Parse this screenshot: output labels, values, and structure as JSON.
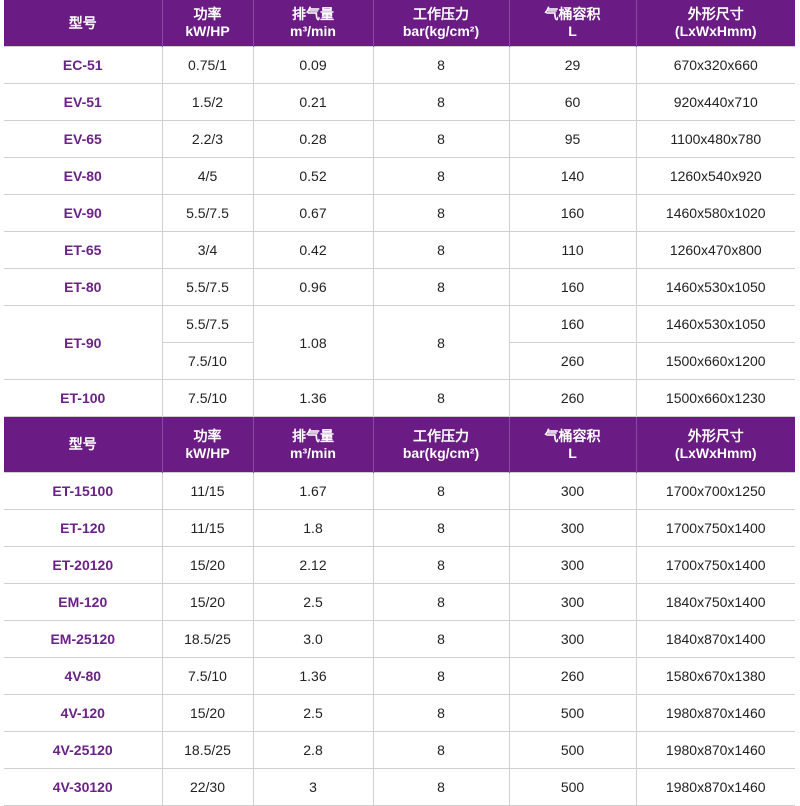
{
  "header": [
    "型号",
    "功率\nkW/HP",
    "排气量\nm³/min",
    "工作压力\nbar(kg/cm²)",
    "气桶容积\nL",
    "外形尺寸\n(LxWxHmm)"
  ],
  "colors": {
    "header_bg": "#6a1b84",
    "model_text": "#6b2287"
  },
  "section1": [
    {
      "model": "EC-51",
      "power": "0.75/1",
      "discharge": "0.09",
      "pressure": "8",
      "volume": "29",
      "dims": "670x320x660"
    },
    {
      "model": "EV-51",
      "power": "1.5/2",
      "discharge": "0.21",
      "pressure": "8",
      "volume": "60",
      "dims": "920x440x710"
    },
    {
      "model": "EV-65",
      "power": "2.2/3",
      "discharge": "0.28",
      "pressure": "8",
      "volume": "95",
      "dims": "1100x480x780"
    },
    {
      "model": "EV-80",
      "power": "4/5",
      "discharge": "0.52",
      "pressure": "8",
      "volume": "140",
      "dims": "1260x540x920"
    },
    {
      "model": "EV-90",
      "power": "5.5/7.5",
      "discharge": "0.67",
      "pressure": "8",
      "volume": "160",
      "dims": "1460x580x1020"
    },
    {
      "model": "ET-65",
      "power": "3/4",
      "discharge": "0.42",
      "pressure": "8",
      "volume": "110",
      "dims": "1260x470x800"
    },
    {
      "model": "ET-80",
      "power": "5.5/7.5",
      "discharge": "0.96",
      "pressure": "8",
      "volume": "160",
      "dims": "1460x530x1050"
    },
    {
      "model": "ET-90",
      "discharge": "1.08",
      "pressure": "8",
      "variants": [
        {
          "power": "5.5/7.5",
          "volume": "160",
          "dims": "1460x530x1050"
        },
        {
          "power": "7.5/10",
          "volume": "260",
          "dims": "1500x660x1200"
        }
      ]
    },
    {
      "model": "ET-100",
      "power": "7.5/10",
      "discharge": "1.36",
      "pressure": "8",
      "volume": "260",
      "dims": "1500x660x1230"
    }
  ],
  "section2": [
    {
      "model": "ET-15100",
      "power": "11/15",
      "discharge": "1.67",
      "pressure": "8",
      "volume": "300",
      "dims": "1700x700x1250"
    },
    {
      "model": "ET-120",
      "power": "11/15",
      "discharge": "1.8",
      "pressure": "8",
      "volume": "300",
      "dims": "1700x750x1400"
    },
    {
      "model": "ET-20120",
      "power": "15/20",
      "discharge": "2.12",
      "pressure": "8",
      "volume": "300",
      "dims": "1700x750x1400"
    },
    {
      "model": "EM-120",
      "power": "15/20",
      "discharge": "2.5",
      "pressure": "8",
      "volume": "300",
      "dims": "1840x750x1400"
    },
    {
      "model": "EM-25120",
      "power": "18.5/25",
      "discharge": "3.0",
      "pressure": "8",
      "volume": "300",
      "dims": "1840x870x1400"
    },
    {
      "model": "4V-80",
      "power": "7.5/10",
      "discharge": "1.36",
      "pressure": "8",
      "volume": "260",
      "dims": "1580x670x1380"
    },
    {
      "model": "4V-120",
      "power": "15/20",
      "discharge": "2.5",
      "pressure": "8",
      "volume": "500",
      "dims": "1980x870x1460"
    },
    {
      "model": "4V-25120",
      "power": "18.5/25",
      "discharge": "2.8",
      "pressure": "8",
      "volume": "500",
      "dims": "1980x870x1460"
    },
    {
      "model": "4V-30120",
      "power": "22/30",
      "discharge": "3",
      "pressure": "8",
      "volume": "500",
      "dims": "1980x870x1460"
    }
  ]
}
